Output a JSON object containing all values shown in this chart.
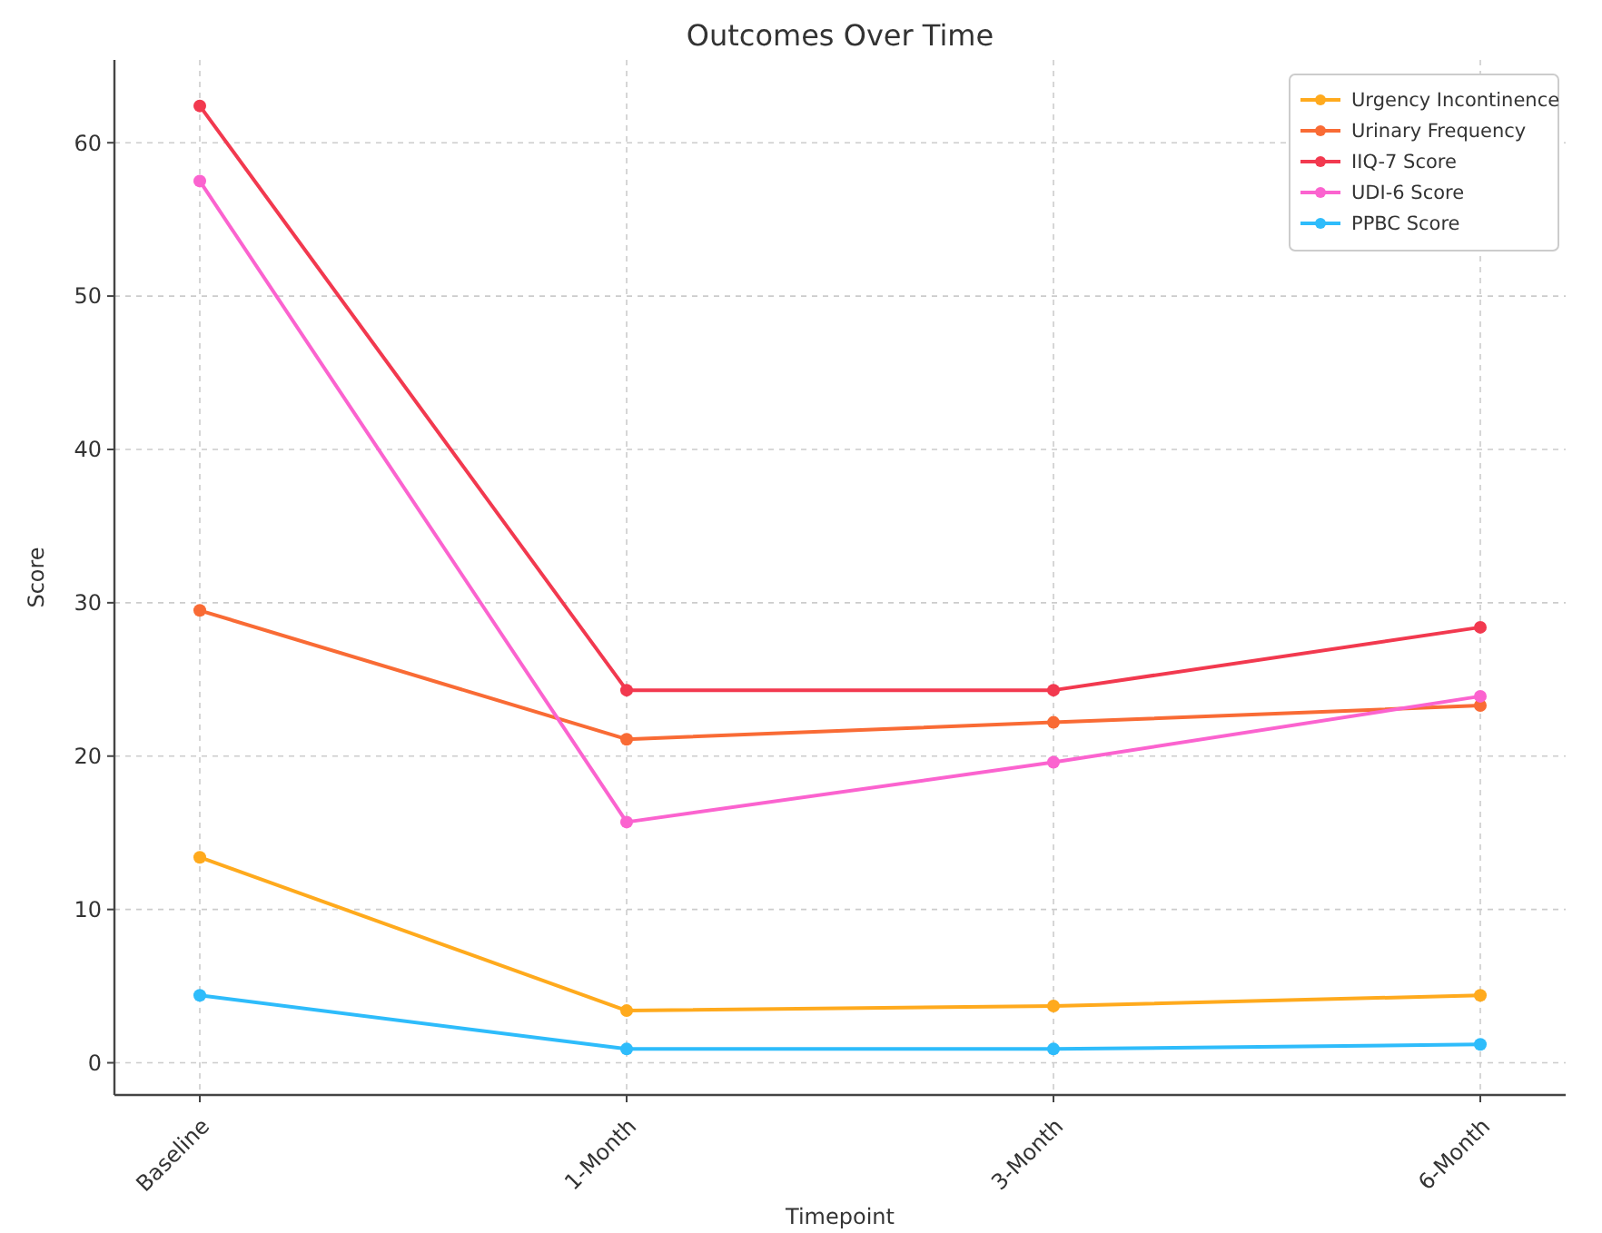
{
  "chart_data": {
    "type": "line",
    "title": "Outcomes Over Time",
    "xlabel": "Timepoint",
    "ylabel": "Score",
    "categories": [
      "Baseline",
      "1-Month",
      "3-Month",
      "6-Month"
    ],
    "series": [
      {
        "name": "Urgency Incontinence",
        "color": "#ffaa1d",
        "values": [
          13.4,
          3.4,
          3.7,
          4.4
        ]
      },
      {
        "name": "Urinary Frequency",
        "color": "#f96b35",
        "values": [
          29.5,
          21.1,
          22.2,
          23.3
        ]
      },
      {
        "name": "IIQ-7 Score",
        "color": "#f2394f",
        "values": [
          62.4,
          24.3,
          24.3,
          28.4
        ]
      },
      {
        "name": "UDI-6 Score",
        "color": "#fb63cf",
        "values": [
          57.5,
          15.7,
          19.6,
          23.9
        ]
      },
      {
        "name": "PPBC Score",
        "color": "#2ebcfb",
        "values": [
          4.4,
          0.9,
          0.9,
          1.2
        ]
      }
    ],
    "ylim": [
      -2.1,
      65.4
    ],
    "yticks": [
      0,
      10,
      20,
      30,
      40,
      50,
      60
    ],
    "grid": true,
    "legend": "top right",
    "marker": "circle",
    "line_style": "solid"
  }
}
